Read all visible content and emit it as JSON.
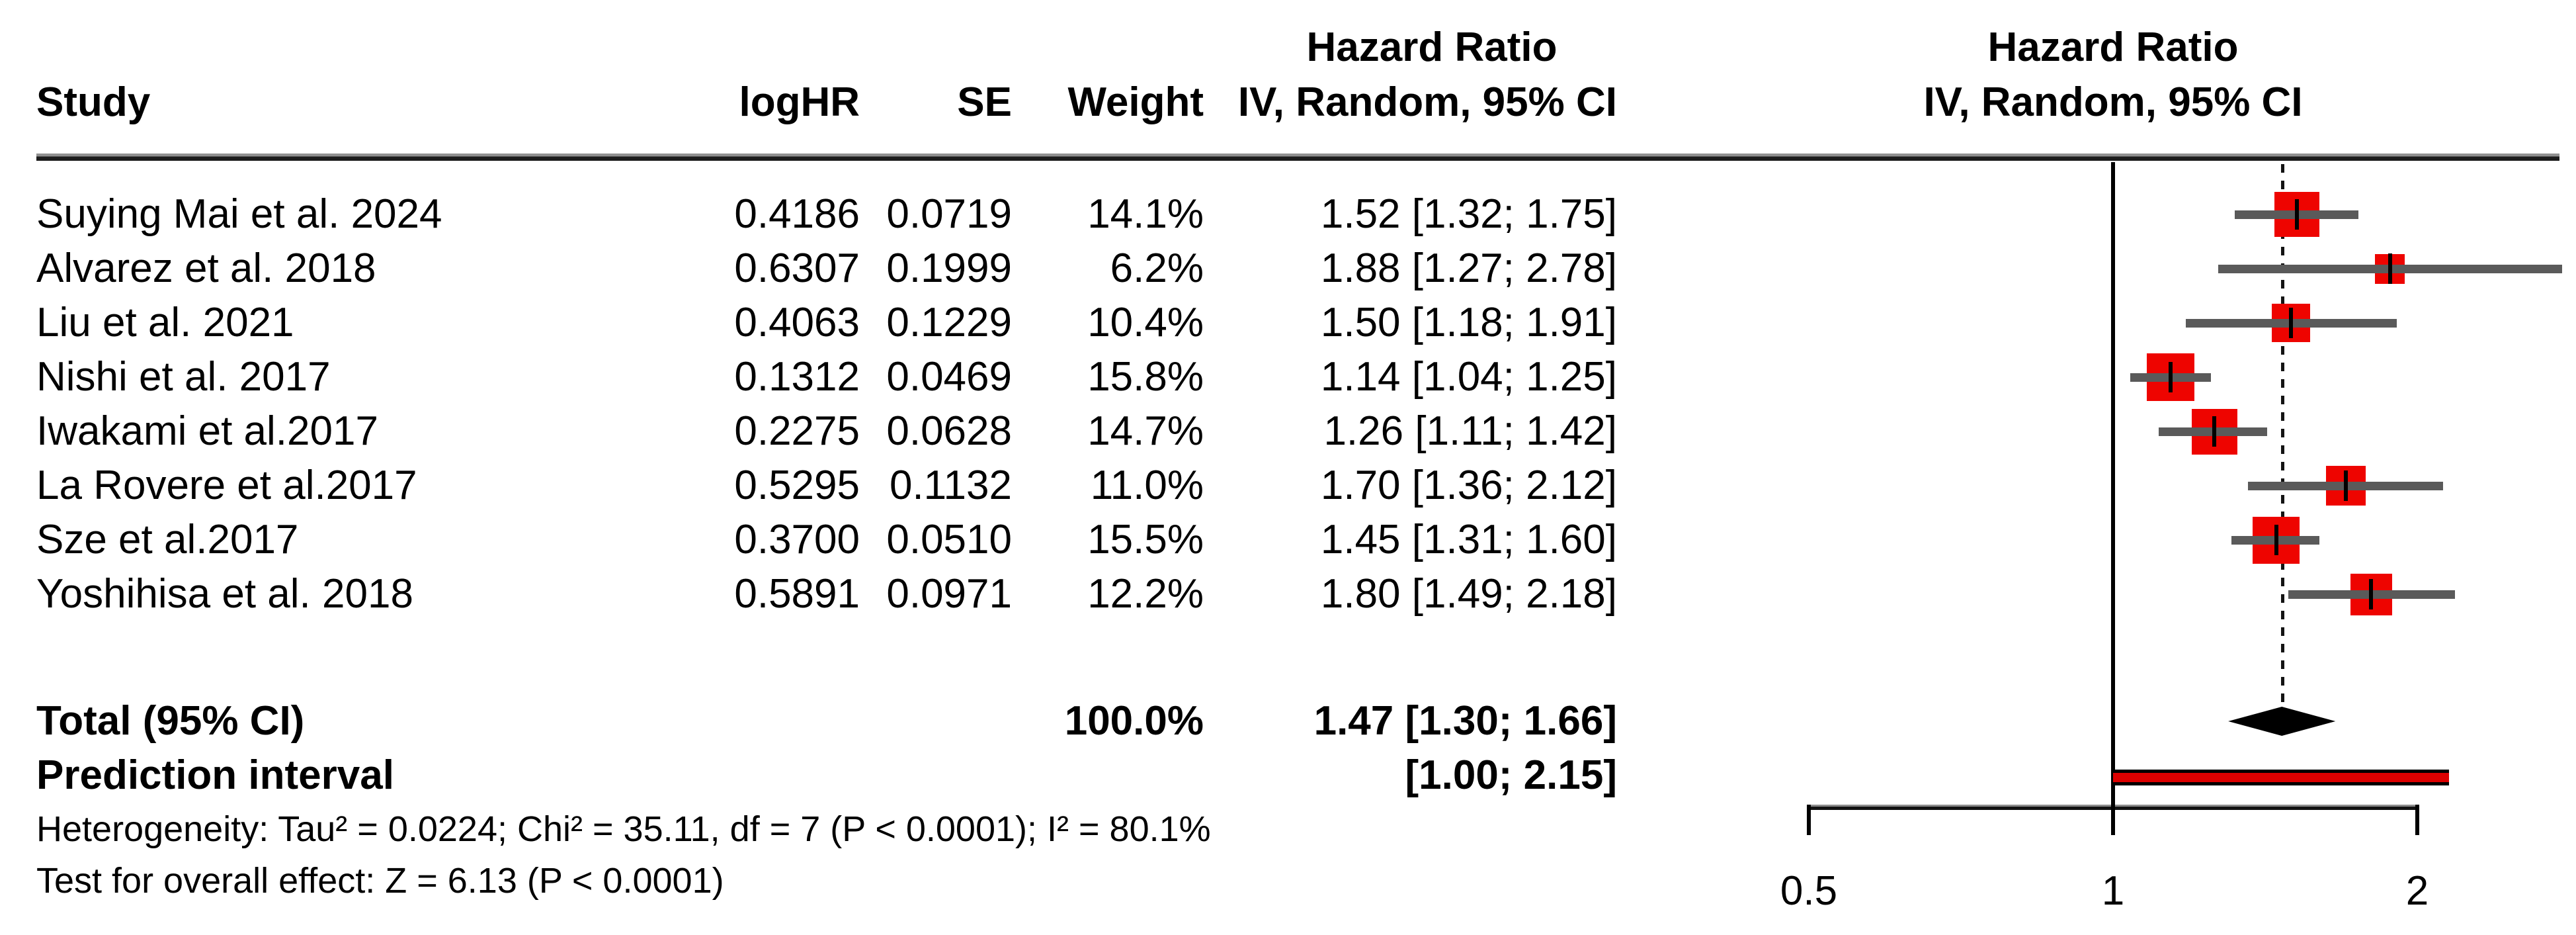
{
  "table": {
    "headers": {
      "hazard_ratio": "Hazard Ratio",
      "study": "Study",
      "loghr": "logHR",
      "se": "SE",
      "weight": "Weight",
      "iv_random": "IV, Random, 95% CI"
    },
    "total_row": {
      "label": "Total (95% CI)",
      "weight": "100.0%",
      "ci_text": "1.47 [1.30; 1.66]"
    },
    "prediction_row": {
      "label": "Prediction interval",
      "ci_text": "[1.00; 2.15]"
    },
    "footnotes": {
      "heterogeneity": "Heterogeneity: Tau² = 0.0224; Chi² = 35.11, df = 7 (P < 0.0001); I² = 80.1%",
      "overall_effect": "Test for overall effect: Z = 6.13 (P < 0.0001)"
    }
  },
  "chart_data": {
    "type": "forest",
    "x_scale": "log",
    "x_ticks": [
      0.5,
      1,
      2
    ],
    "x_range": [
      0.5,
      2
    ],
    "reference_line": 1,
    "pooled_line": 1.47,
    "effect_label": "Hazard Ratio",
    "model_label": "IV, Random, 95% CI",
    "studies": [
      {
        "name": "Suying Mai et al. 2024",
        "loghr": "0.4186",
        "se": "0.0719",
        "weight": "14.1%",
        "weight_pct": 14.1,
        "hr": 1.52,
        "lower": 1.32,
        "upper": 1.75,
        "ci_text": "1.52 [1.32; 1.75]"
      },
      {
        "name": "Alvarez et al. 2018",
        "loghr": "0.6307",
        "se": "0.1999",
        "weight": "6.2%",
        "weight_pct": 6.2,
        "hr": 1.88,
        "lower": 1.27,
        "upper": 2.78,
        "ci_text": "1.88 [1.27; 2.78]"
      },
      {
        "name": "Liu et al. 2021",
        "loghr": "0.4063",
        "se": "0.1229",
        "weight": "10.4%",
        "weight_pct": 10.4,
        "hr": 1.5,
        "lower": 1.18,
        "upper": 1.91,
        "ci_text": "1.50 [1.18; 1.91]"
      },
      {
        "name": "Nishi et al. 2017",
        "loghr": "0.1312",
        "se": "0.0469",
        "weight": "15.8%",
        "weight_pct": 15.8,
        "hr": 1.14,
        "lower": 1.04,
        "upper": 1.25,
        "ci_text": "1.14 [1.04; 1.25]"
      },
      {
        "name": "Iwakami et al.2017",
        "loghr": "0.2275",
        "se": "0.0628",
        "weight": "14.7%",
        "weight_pct": 14.7,
        "hr": 1.26,
        "lower": 1.11,
        "upper": 1.42,
        "ci_text": "1.26 [1.11; 1.42]"
      },
      {
        "name": "La Rovere et al.2017",
        "loghr": "0.5295",
        "se": "0.1132",
        "weight": "11.0%",
        "weight_pct": 11.0,
        "hr": 1.7,
        "lower": 1.36,
        "upper": 2.12,
        "ci_text": "1.70 [1.36; 2.12]"
      },
      {
        "name": "Sze et al.2017",
        "loghr": "0.3700",
        "se": "0.0510",
        "weight": "15.5%",
        "weight_pct": 15.5,
        "hr": 1.45,
        "lower": 1.31,
        "upper": 1.6,
        "ci_text": "1.45 [1.31; 1.60]"
      },
      {
        "name": "Yoshihisa et al. 2018",
        "loghr": "0.5891",
        "se": "0.0971",
        "weight": "12.2%",
        "weight_pct": 12.2,
        "hr": 1.8,
        "lower": 1.49,
        "upper": 2.18,
        "ci_text": "1.80 [1.49; 2.18]"
      }
    ],
    "total": {
      "hr": 1.47,
      "lower": 1.3,
      "upper": 1.66
    },
    "prediction_interval": {
      "lower": 1.0,
      "upper": 2.15
    },
    "colors": {
      "square": "#ee0400",
      "ci_line": "#5a5a5a",
      "diamond": "#000000",
      "prediction_bar": "#dd0000",
      "text": "#000000"
    }
  }
}
